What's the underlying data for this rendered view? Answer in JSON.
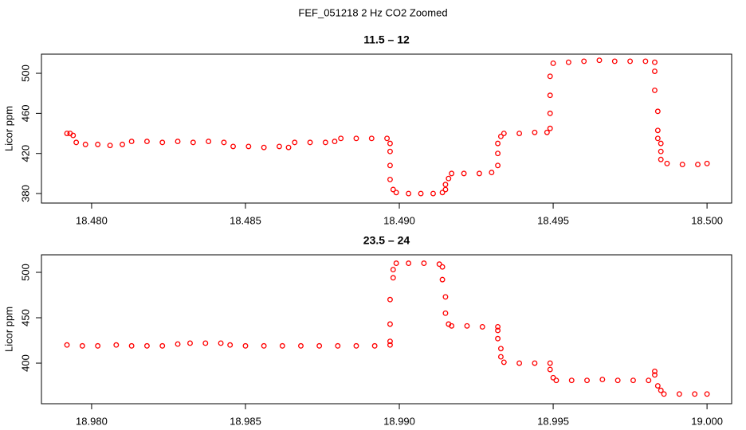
{
  "title": "FEF_051218  2 Hz CO2 Zoomed",
  "chart_data": [
    {
      "type": "scatter",
      "title": "11.5 – 12",
      "ylabel": "Licor ppm",
      "color": "#ff0000",
      "xlim": [
        18.47837,
        18.5008
      ],
      "ylim": [
        370.5,
        519.1
      ],
      "xticks": [
        {
          "value": 18.48,
          "label": "18.480"
        },
        {
          "value": 18.485,
          "label": "18.485"
        },
        {
          "value": 18.49,
          "label": "18.490"
        },
        {
          "value": 18.495,
          "label": "18.495"
        },
        {
          "value": 18.5,
          "label": "18.500"
        }
      ],
      "yticks": [
        380,
        420,
        460,
        500
      ],
      "x": [
        18.4792,
        18.4793,
        18.4794,
        18.4795,
        18.4798,
        18.4802,
        18.4806,
        18.481,
        18.4813,
        18.4818,
        18.4823,
        18.4828,
        18.4833,
        18.4838,
        18.4843,
        18.4846,
        18.4851,
        18.4856,
        18.4861,
        18.4864,
        18.4866,
        18.4871,
        18.4876,
        18.4879,
        18.4881,
        18.4886,
        18.4891,
        18.4896,
        18.4897,
        18.4897,
        18.4897,
        18.4897,
        18.4898,
        18.4899,
        18.4903,
        18.4907,
        18.4911,
        18.4914,
        18.4915,
        18.4915,
        18.4916,
        18.4917,
        18.4921,
        18.4926,
        18.493,
        18.4932,
        18.4932,
        18.4932,
        18.4933,
        18.4934,
        18.4939,
        18.4944,
        18.4948,
        18.4949,
        18.4949,
        18.4949,
        18.4949,
        18.495,
        18.4955,
        18.496,
        18.4965,
        18.497,
        18.4975,
        18.498,
        18.4983,
        18.4983,
        18.4983,
        18.4984,
        18.4984,
        18.4984,
        18.4985,
        18.4985,
        18.4985,
        18.4987,
        18.4992,
        18.4997,
        18.5
      ],
      "y": [
        440,
        440,
        438,
        431,
        429,
        429,
        428,
        429,
        432,
        432,
        431,
        432,
        431,
        432,
        431,
        427,
        427,
        426,
        427,
        426,
        431,
        431,
        431,
        432,
        435,
        435,
        435,
        435,
        430,
        422,
        408,
        394,
        384,
        381,
        380,
        380,
        380,
        381,
        384,
        389,
        395,
        400,
        400,
        400,
        401,
        408,
        420,
        430,
        437,
        440,
        440,
        441,
        441,
        445,
        460,
        478,
        497,
        510,
        511,
        512,
        513,
        512,
        512,
        512,
        511,
        502,
        483,
        462,
        443,
        435,
        430,
        422,
        414,
        410,
        409,
        409,
        410
      ]
    },
    {
      "type": "scatter",
      "title": "23.5 – 24",
      "ylabel": "Licor ppm",
      "color": "#ff0000",
      "xlim": [
        18.97837,
        19.0008
      ],
      "ylim": [
        355.3,
        519.3
      ],
      "xticks": [
        {
          "value": 18.98,
          "label": "18.980"
        },
        {
          "value": 18.985,
          "label": "18.985"
        },
        {
          "value": 18.99,
          "label": "18.990"
        },
        {
          "value": 18.995,
          "label": "18.995"
        },
        {
          "value": 19.0,
          "label": "19.000"
        }
      ],
      "yticks": [
        400,
        450,
        500
      ],
      "x": [
        18.9792,
        18.9797,
        18.9802,
        18.9808,
        18.9813,
        18.9818,
        18.9823,
        18.9828,
        18.9832,
        18.9837,
        18.9842,
        18.9845,
        18.985,
        18.9856,
        18.9862,
        18.9868,
        18.9874,
        18.988,
        18.9886,
        18.9892,
        18.9897,
        18.9897,
        18.9897,
        18.9897,
        18.9898,
        18.9898,
        18.9899,
        18.9903,
        18.9908,
        18.9913,
        18.9914,
        18.9914,
        18.9915,
        18.9915,
        18.9916,
        18.9917,
        18.9922,
        18.9927,
        18.9932,
        18.9932,
        18.9932,
        18.9933,
        18.9933,
        18.9934,
        18.9939,
        18.9944,
        18.9949,
        18.9949,
        18.995,
        18.9951,
        18.9956,
        18.9961,
        18.9966,
        18.9971,
        18.9976,
        18.9981,
        18.9983,
        18.9983,
        18.9984,
        18.9985,
        18.9986,
        18.9991,
        18.9996,
        19.0
      ],
      "y": [
        420,
        419,
        419,
        420,
        419,
        419,
        419,
        421,
        422,
        422,
        422,
        420,
        419,
        419,
        419,
        419,
        419,
        419,
        419,
        419,
        420,
        424,
        443,
        470,
        494,
        503,
        510,
        510,
        510,
        509,
        506,
        492,
        473,
        455,
        443,
        441,
        441,
        440,
        440,
        436,
        427,
        416,
        407,
        401,
        400,
        400,
        400,
        393,
        384,
        381,
        381,
        381,
        382,
        381,
        381,
        381,
        391,
        387,
        375,
        370,
        366,
        366,
        366,
        366
      ]
    }
  ]
}
